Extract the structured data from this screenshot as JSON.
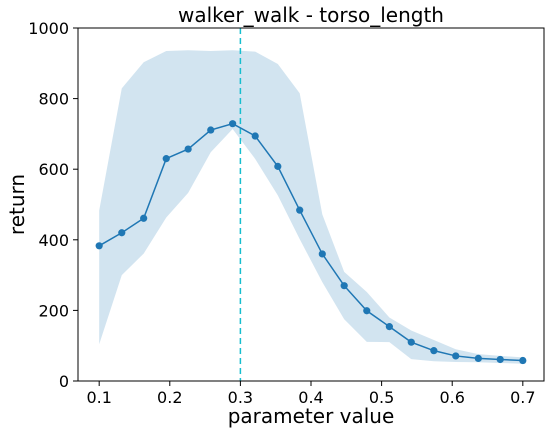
{
  "chart_data": {
    "type": "line",
    "title": "walker_walk - torso_length",
    "xlabel": "parameter value",
    "ylabel": "return",
    "xlim": [
      0.07,
      0.73
    ],
    "ylim": [
      0,
      1000
    ],
    "xticks": [
      "0.1",
      "0.2",
      "0.3",
      "0.4",
      "0.5",
      "0.6",
      "0.7"
    ],
    "yticks": [
      "0",
      "200",
      "400",
      "600",
      "800",
      "1000"
    ],
    "grid": false,
    "series": [
      {
        "color": "#1f77b4",
        "x": [
          0.1,
          0.132,
          0.163,
          0.195,
          0.226,
          0.258,
          0.289,
          0.321,
          0.353,
          0.384,
          0.416,
          0.447,
          0.479,
          0.511,
          0.542,
          0.574,
          0.605,
          0.637,
          0.668,
          0.7
        ],
        "y": [
          383,
          420,
          461,
          630,
          657,
          711,
          729,
          694,
          608,
          484,
          360,
          270,
          199,
          154,
          110,
          86,
          71,
          64,
          61,
          58
        ],
        "band_upper": [
          483,
          829,
          903,
          935,
          937,
          935,
          937,
          933,
          898,
          815,
          472,
          309,
          252,
          180,
          143,
          116,
          90,
          76,
          71,
          67
        ],
        "band_lower": [
          104,
          300,
          361,
          463,
          533,
          648,
          714,
          629,
          526,
          402,
          280,
          175,
          111,
          110,
          62,
          56,
          54,
          53,
          51,
          49
        ]
      }
    ],
    "reference_line": {
      "x": 0.3,
      "color": "#17becf",
      "style": "dashed"
    }
  }
}
